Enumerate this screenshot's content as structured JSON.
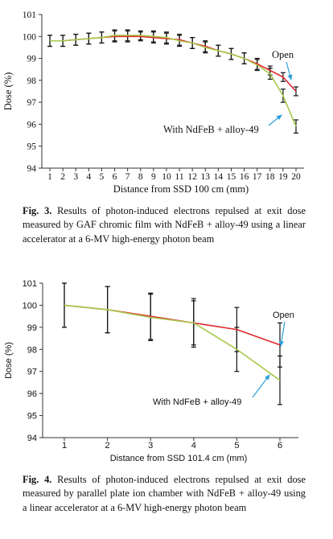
{
  "chart_data": [
    {
      "type": "line",
      "xlabel": "Distance from SSD 100 cm (mm)",
      "ylabel": "Dose (%)",
      "x": [
        1,
        2,
        3,
        4,
        5,
        6,
        7,
        8,
        9,
        10,
        11,
        12,
        13,
        14,
        15,
        16,
        17,
        18,
        19,
        20
      ],
      "ylim": [
        94,
        101
      ],
      "yticks": [
        94,
        95,
        96,
        97,
        98,
        99,
        100,
        101
      ],
      "series": [
        {
          "name": "Open",
          "color": "#e0262b",
          "values": [
            99.8,
            99.8,
            99.85,
            99.9,
            99.95,
            100.0,
            100.0,
            100.0,
            99.95,
            99.9,
            99.85,
            99.7,
            99.55,
            99.35,
            99.2,
            99.0,
            98.75,
            98.45,
            98.15,
            97.5
          ],
          "errors": [
            0.25,
            0.25,
            0.25,
            0.25,
            0.25,
            0.25,
            0.25,
            0.2,
            0.25,
            0.25,
            0.25,
            0.25,
            0.25,
            0.25,
            0.25,
            0.25,
            0.25,
            0.2,
            0.2,
            0.2
          ]
        },
        {
          "name": "With NdFeB + alloy-49",
          "color": "#a6c94a",
          "values": [
            99.8,
            99.8,
            99.85,
            99.9,
            99.95,
            100.05,
            100.05,
            100.05,
            100.0,
            99.95,
            99.8,
            99.7,
            99.5,
            99.35,
            99.2,
            99.0,
            98.7,
            98.3,
            97.3,
            95.9
          ],
          "errors": [
            0.25,
            0.25,
            0.25,
            0.25,
            0.25,
            0.25,
            0.25,
            0.2,
            0.25,
            0.25,
            0.25,
            0.25,
            0.25,
            0.25,
            0.25,
            0.25,
            0.25,
            0.25,
            0.3,
            0.3
          ]
        }
      ],
      "annotations": [
        {
          "text": "Open",
          "target_series": "Open"
        },
        {
          "text": "With NdFeB + alloy-49",
          "target_series": "With NdFeB + alloy-49"
        }
      ],
      "grid": false
    },
    {
      "type": "line",
      "xlabel": "Distance from SSD 101.4 cm (mm)",
      "ylabel": "Dose (%)",
      "x": [
        1,
        2,
        3,
        4,
        5,
        6
      ],
      "ylim": [
        94,
        101
      ],
      "yticks": [
        94,
        95,
        96,
        97,
        98,
        99,
        100,
        101
      ],
      "series": [
        {
          "name": "Open",
          "color": "#e0262b",
          "values": [
            100.0,
            99.8,
            99.5,
            99.2,
            98.9,
            98.2
          ],
          "errors": [
            1.0,
            1.05,
            1.05,
            1.0,
            1.0,
            1.0
          ]
        },
        {
          "name": "With NdFeB + alloy-49",
          "color": "#a6c94a",
          "values": [
            100.0,
            99.8,
            99.45,
            99.2,
            98.0,
            96.6
          ],
          "errors": [
            1.0,
            1.05,
            1.05,
            1.1,
            1.0,
            1.1
          ]
        }
      ],
      "annotations": [
        {
          "text": "Open",
          "target_series": "Open"
        },
        {
          "text": "With NdFeB + alloy-49",
          "target_series": "With NdFeB + alloy-49"
        }
      ],
      "grid": false
    }
  ],
  "captions": [
    {
      "label": "Fig. 3.",
      "text": " Results of photon-induced electrons repulsed at exit dose measured by GAF chromic film with NdFeB + alloy-49 using a linear accelerator at a 6-MV high-energy photon beam"
    },
    {
      "label": "Fig. 4.",
      "text": " Results of photon-induced electrons repulsed at exit dose measured by parallel plate ion chamber with NdFeB + alloy-49 using a linear accelerator at a 6-MV high-energy photon beam"
    }
  ],
  "annotation_color": "#2b9fd9"
}
